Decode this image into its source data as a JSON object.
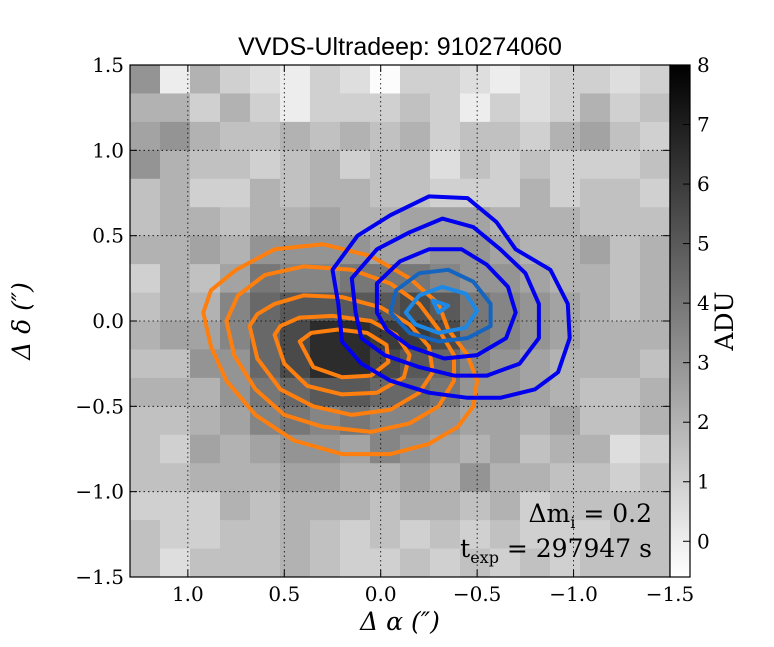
{
  "chart_data": {
    "type": "heatmap",
    "title": "VVDS-Ultradeep: 910274060",
    "xlabel": "Δ α  (″)",
    "ylabel": "Δ δ  (″)",
    "xlim": [
      1.3,
      -1.5
    ],
    "ylim": [
      -1.5,
      1.5
    ],
    "grid": true,
    "x_ticks": [
      {
        "value": 1.0,
        "label": "1.0"
      },
      {
        "value": 0.5,
        "label": "0.5"
      },
      {
        "value": 0.0,
        "label": "0.0"
      },
      {
        "value": -0.5,
        "label": "−0.5"
      },
      {
        "value": -1.0,
        "label": "−1.0"
      },
      {
        "value": -1.5,
        "label": "−1.5"
      }
    ],
    "y_ticks": [
      {
        "value": 1.5,
        "label": "1.5"
      },
      {
        "value": 1.0,
        "label": "1.0"
      },
      {
        "value": 0.5,
        "label": "0.5"
      },
      {
        "value": 0.0,
        "label": "0.0"
      },
      {
        "value": -0.5,
        "label": "−0.5"
      },
      {
        "value": -1.0,
        "label": "−1.0"
      },
      {
        "value": -1.5,
        "label": "−1.5"
      }
    ],
    "colorbar": {
      "label": "ADU",
      "min": -0.6,
      "max": 8,
      "ticks": [
        {
          "value": 0,
          "label": "0"
        },
        {
          "value": 1,
          "label": "1"
        },
        {
          "value": 2,
          "label": "2"
        },
        {
          "value": 3,
          "label": "3"
        },
        {
          "value": 4,
          "label": "4"
        },
        {
          "value": 5,
          "label": "5"
        },
        {
          "value": 6,
          "label": "6"
        },
        {
          "value": 7,
          "label": "7"
        },
        {
          "value": 8,
          "label": "8"
        }
      ]
    },
    "image": {
      "x_range": [
        1.3,
        -1.5
      ],
      "y_range": [
        1.5,
        -1.5
      ],
      "values": [
        [
          3,
          0,
          2,
          1,
          0.5,
          0,
          1,
          0.5,
          -0.5,
          1,
          1,
          0.5,
          0,
          0.5,
          1,
          1,
          0.5,
          1
        ],
        [
          2,
          2,
          1,
          2,
          1,
          0,
          1,
          1,
          1,
          1.5,
          1,
          0,
          1,
          0.5,
          1,
          2,
          1,
          1.5
        ],
        [
          2.5,
          3,
          2,
          1.5,
          1.5,
          2,
          1.5,
          2,
          1.5,
          2,
          1,
          1.5,
          1.5,
          1,
          2,
          2.5,
          1.5,
          1
        ],
        [
          3,
          2,
          1.5,
          1.5,
          1,
          1.5,
          2,
          1,
          1.5,
          1.5,
          0.5,
          1.5,
          1,
          1.5,
          1,
          1,
          1,
          1.5
        ],
        [
          1.5,
          2,
          1,
          1,
          2,
          1.5,
          2,
          2,
          1.5,
          1.5,
          1,
          1,
          1,
          2,
          1,
          1.5,
          1.5,
          1
        ],
        [
          1.5,
          2,
          2,
          1.5,
          2,
          2,
          2.5,
          2,
          2,
          2.5,
          2.5,
          2.5,
          2,
          2,
          2,
          1.5,
          1.5,
          1.5
        ],
        [
          2,
          2,
          2.5,
          2,
          3,
          3,
          3,
          3,
          2.5,
          2.5,
          3,
          3,
          2.5,
          2,
          2,
          2.5,
          1.5,
          2
        ],
        [
          1,
          2,
          1.5,
          2.5,
          4,
          3.5,
          3.5,
          4,
          4,
          4,
          3.5,
          3,
          3,
          2.5,
          2,
          2,
          1.5,
          2
        ],
        [
          1.5,
          2,
          2,
          3.5,
          4.5,
          5,
          5,
          5,
          5,
          5.5,
          5,
          4,
          3.5,
          3,
          2.5,
          2,
          1.5,
          2
        ],
        [
          2,
          2.5,
          2.5,
          3.5,
          4.5,
          5.5,
          6.5,
          6.5,
          6,
          6,
          5.5,
          4,
          3.5,
          3,
          2.5,
          2,
          2,
          2
        ],
        [
          1.5,
          1.5,
          3,
          3,
          4.5,
          5.5,
          6.5,
          6.5,
          5.5,
          5,
          4.5,
          3.5,
          3,
          2.5,
          2,
          2,
          2,
          1.5
        ],
        [
          2,
          2,
          2,
          3,
          4,
          4.5,
          5,
          5,
          4.5,
          4.5,
          4,
          3,
          3,
          2.5,
          2,
          1.5,
          1.5,
          2
        ],
        [
          1.5,
          1.5,
          2,
          2.5,
          3.5,
          4,
          3.5,
          4,
          3.5,
          3.5,
          3,
          2.5,
          2.5,
          2,
          2.5,
          1.5,
          1.5,
          2
        ],
        [
          1.5,
          1,
          2.5,
          2,
          2.5,
          3,
          3,
          2.5,
          3.5,
          3,
          2.5,
          2,
          2.5,
          1.5,
          2,
          2,
          0.5,
          1
        ],
        [
          1.5,
          1.5,
          2,
          2,
          2,
          2.5,
          2.5,
          2,
          2,
          2.5,
          2,
          3,
          2,
          2,
          1.5,
          1.5,
          1,
          1.5
        ],
        [
          1,
          1,
          1,
          2,
          1.5,
          2,
          2,
          2,
          1.5,
          2,
          2,
          1.5,
          2,
          1,
          1.5,
          1.5,
          1.5,
          1.5
        ],
        [
          1.5,
          1,
          1,
          1.5,
          1.5,
          2,
          1.5,
          1,
          1.5,
          1,
          1.5,
          1,
          1.5,
          1,
          1,
          1,
          1.5,
          1.5
        ],
        [
          1.5,
          0.5,
          1.5,
          1.5,
          1.5,
          2,
          1.5,
          1,
          1,
          1.5,
          1,
          1.5,
          1,
          1.5,
          1,
          1.5,
          1.5,
          1.5
        ]
      ]
    },
    "series": [
      {
        "name": "orange contours",
        "color": "#ff7f0e",
        "contours": [
          [
            [
              0.92,
              0.05
            ],
            [
              0.88,
              -0.15
            ],
            [
              0.8,
              -0.35
            ],
            [
              0.65,
              -0.55
            ],
            [
              0.45,
              -0.7
            ],
            [
              0.2,
              -0.78
            ],
            [
              -0.05,
              -0.78
            ],
            [
              -0.25,
              -0.72
            ],
            [
              -0.4,
              -0.62
            ],
            [
              -0.48,
              -0.5
            ],
            [
              -0.5,
              -0.35
            ],
            [
              -0.45,
              -0.2
            ],
            [
              -0.35,
              -0.05
            ],
            [
              -0.3,
              0.1
            ],
            [
              -0.15,
              0.25
            ],
            [
              0.05,
              0.38
            ],
            [
              0.3,
              0.45
            ],
            [
              0.55,
              0.42
            ],
            [
              0.75,
              0.3
            ],
            [
              0.88,
              0.18
            ]
          ],
          [
            [
              0.8,
              0.0
            ],
            [
              0.76,
              -0.2
            ],
            [
              0.65,
              -0.4
            ],
            [
              0.5,
              -0.55
            ],
            [
              0.3,
              -0.62
            ],
            [
              0.05,
              -0.65
            ],
            [
              -0.15,
              -0.6
            ],
            [
              -0.3,
              -0.5
            ],
            [
              -0.38,
              -0.35
            ],
            [
              -0.38,
              -0.2
            ],
            [
              -0.3,
              -0.05
            ],
            [
              -0.2,
              0.1
            ],
            [
              -0.05,
              0.22
            ],
            [
              0.15,
              0.3
            ],
            [
              0.4,
              0.32
            ],
            [
              0.6,
              0.27
            ],
            [
              0.74,
              0.15
            ]
          ],
          [
            [
              0.68,
              -0.03
            ],
            [
              0.64,
              -0.22
            ],
            [
              0.52,
              -0.4
            ],
            [
              0.35,
              -0.5
            ],
            [
              0.15,
              -0.55
            ],
            [
              -0.05,
              -0.52
            ],
            [
              -0.2,
              -0.42
            ],
            [
              -0.27,
              -0.3
            ],
            [
              -0.25,
              -0.15
            ],
            [
              -0.15,
              -0.02
            ],
            [
              0.0,
              0.08
            ],
            [
              0.2,
              0.14
            ],
            [
              0.4,
              0.15
            ],
            [
              0.55,
              0.1
            ],
            [
              0.64,
              0.04
            ]
          ],
          [
            [
              0.55,
              -0.08
            ],
            [
              0.5,
              -0.25
            ],
            [
              0.38,
              -0.38
            ],
            [
              0.2,
              -0.43
            ],
            [
              0.02,
              -0.42
            ],
            [
              -0.12,
              -0.33
            ],
            [
              -0.15,
              -0.2
            ],
            [
              -0.08,
              -0.08
            ],
            [
              0.05,
              0.0
            ],
            [
              0.25,
              0.03
            ],
            [
              0.42,
              0.02
            ],
            [
              0.52,
              -0.03
            ]
          ],
          [
            [
              0.42,
              -0.12
            ],
            [
              0.35,
              -0.27
            ],
            [
              0.2,
              -0.33
            ],
            [
              0.05,
              -0.32
            ],
            [
              -0.04,
              -0.24
            ],
            [
              -0.03,
              -0.14
            ],
            [
              0.07,
              -0.07
            ],
            [
              0.22,
              -0.05
            ],
            [
              0.36,
              -0.07
            ]
          ]
        ]
      },
      {
        "name": "blue contours",
        "color": "#0000ee",
        "contours": [
          [
            [
              0.22,
              0.1
            ],
            [
              0.25,
              0.3
            ],
            [
              0.12,
              0.5
            ],
            [
              -0.05,
              0.62
            ],
            [
              -0.25,
              0.73
            ],
            [
              -0.45,
              0.72
            ],
            [
              -0.6,
              0.58
            ],
            [
              -0.7,
              0.42
            ],
            [
              -0.88,
              0.3
            ],
            [
              -0.97,
              0.1
            ],
            [
              -0.98,
              -0.1
            ],
            [
              -0.92,
              -0.3
            ],
            [
              -0.8,
              -0.4
            ],
            [
              -0.62,
              -0.45
            ],
            [
              -0.45,
              -0.45
            ],
            [
              -0.25,
              -0.42
            ],
            [
              -0.05,
              -0.35
            ],
            [
              0.1,
              -0.25
            ],
            [
              0.2,
              -0.12
            ]
          ],
          [
            [
              0.13,
              0.05
            ],
            [
              0.15,
              0.25
            ],
            [
              0.02,
              0.42
            ],
            [
              -0.15,
              0.52
            ],
            [
              -0.32,
              0.6
            ],
            [
              -0.48,
              0.55
            ],
            [
              -0.62,
              0.42
            ],
            [
              -0.75,
              0.28
            ],
            [
              -0.82,
              0.1
            ],
            [
              -0.82,
              -0.1
            ],
            [
              -0.72,
              -0.25
            ],
            [
              -0.55,
              -0.32
            ],
            [
              -0.38,
              -0.32
            ],
            [
              -0.2,
              -0.27
            ],
            [
              -0.02,
              -0.2
            ],
            [
              0.1,
              -0.1
            ]
          ],
          [
            [
              0.02,
              0.05
            ],
            [
              0.02,
              0.22
            ],
            [
              -0.1,
              0.35
            ],
            [
              -0.25,
              0.42
            ],
            [
              -0.42,
              0.42
            ],
            [
              -0.55,
              0.33
            ],
            [
              -0.66,
              0.2
            ],
            [
              -0.7,
              0.05
            ],
            [
              -0.65,
              -0.1
            ],
            [
              -0.5,
              -0.2
            ],
            [
              -0.33,
              -0.22
            ],
            [
              -0.15,
              -0.15
            ],
            [
              -0.03,
              -0.05
            ]
          ]
        ]
      },
      {
        "name": "mid blue contours",
        "color": "#1565c0",
        "contours": [
          [
            [
              -0.05,
              0.05
            ],
            [
              -0.08,
              0.18
            ],
            [
              -0.2,
              0.28
            ],
            [
              -0.35,
              0.3
            ],
            [
              -0.48,
              0.23
            ],
            [
              -0.57,
              0.1
            ],
            [
              -0.57,
              -0.03
            ],
            [
              -0.45,
              -0.1
            ],
            [
              -0.3,
              -0.12
            ],
            [
              -0.15,
              -0.07
            ]
          ]
        ]
      },
      {
        "name": "light blue contours",
        "color": "#1e88e5",
        "contours": [
          [
            [
              -0.13,
              0.05
            ],
            [
              -0.2,
              0.15
            ],
            [
              -0.32,
              0.2
            ],
            [
              -0.44,
              0.16
            ],
            [
              -0.5,
              0.06
            ],
            [
              -0.44,
              -0.04
            ],
            [
              -0.3,
              -0.07
            ],
            [
              -0.18,
              -0.02
            ]
          ],
          [
            [
              -0.27,
              0.12
            ],
            [
              -0.35,
              0.09
            ],
            [
              -0.3,
              0.05
            ]
          ]
        ]
      }
    ],
    "annotations": [
      {
        "text_main": "Δm",
        "text_sub": "i",
        "text_rest": " = 0.2"
      },
      {
        "text_main": "t",
        "text_sub": "exp",
        "text_rest": " = 297947 s"
      }
    ]
  }
}
